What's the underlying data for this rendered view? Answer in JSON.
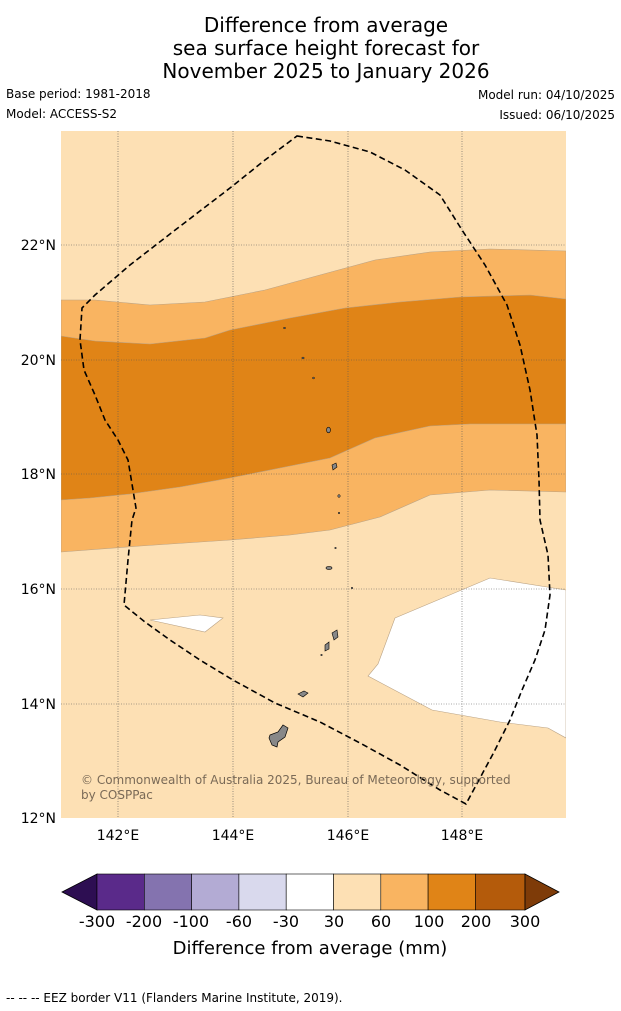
{
  "title": {
    "line1": "Difference from average",
    "line2": "sea surface height forecast for",
    "line3": "November 2025 to January 2026"
  },
  "meta": {
    "base_period": "Base period: 1981-2018",
    "model": "Model: ACCESS-S2",
    "model_run": "Model run: 04/10/2025",
    "issued": "Issued: 06/10/2025"
  },
  "map": {
    "lon_labels": [
      "142°E",
      "144°E",
      "146°E",
      "148°E"
    ],
    "lat_labels": [
      "22°N",
      "20°N",
      "18°N",
      "16°N",
      "14°N",
      "12°N"
    ],
    "copyright_line1": "© Commonwealth of Australia 2025, Bureau of Meteorology, supported",
    "copyright_line2": "by COSPPac",
    "colors": {
      "band_30_60": "#fde0b4",
      "band_60_100": "#f9b461",
      "band_100_200": "#e08417",
      "band_m30_30": "#ffffff",
      "land": "#888888",
      "eez": "#000000",
      "grid": "#555555"
    }
  },
  "colorbar": {
    "title": "Difference from average (mm)",
    "labels": [
      "-300",
      "-200",
      "-100",
      "-60",
      "-30",
      "30",
      "60",
      "100",
      "200",
      "300"
    ],
    "colors": [
      "#2d0e52",
      "#5a2a8a",
      "#8473af",
      "#b3abd4",
      "#d9d9ed",
      "#ffffff",
      "#fde0b4",
      "#f9b461",
      "#e08417",
      "#b45b0b",
      "#7e3b08"
    ]
  },
  "footer": "--  --  -- EEZ border V11 (Flanders Marine Institute, 2019)."
}
